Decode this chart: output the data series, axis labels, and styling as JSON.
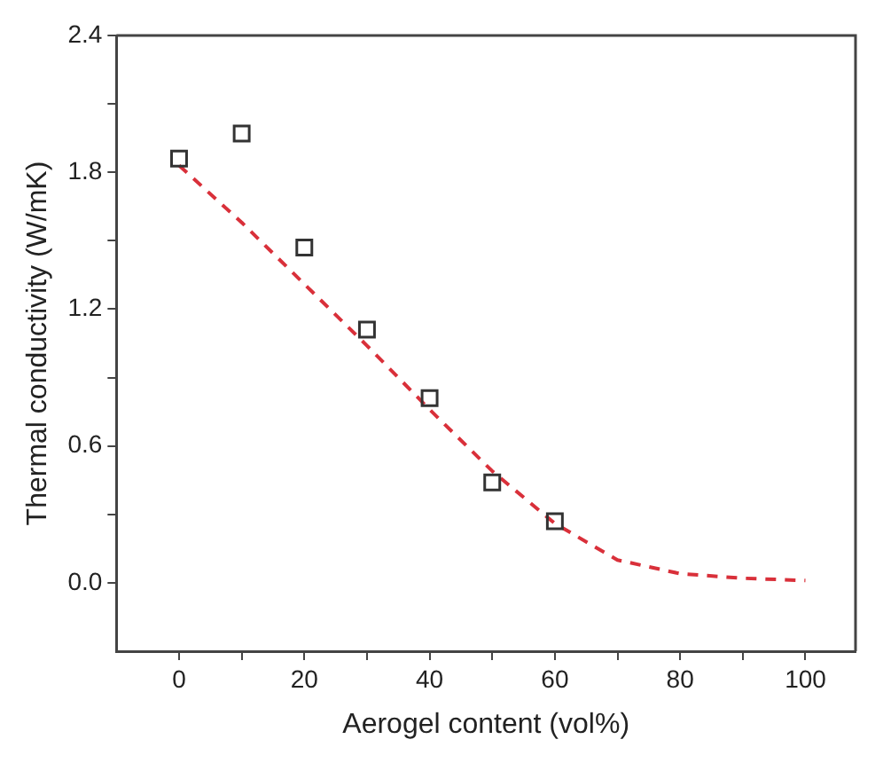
{
  "chart_data": {
    "type": "scatter",
    "xlabel": "Aerogel content (vol%)",
    "ylabel": "Thermal conductivity (W/mK)",
    "xlim": [
      -10,
      108
    ],
    "ylim": [
      -0.3,
      2.4
    ],
    "xticks": [
      0,
      {
        "value": 10,
        "label": null
      },
      20,
      {
        "value": 30,
        "label": null
      },
      40,
      {
        "value": 50,
        "label": null
      },
      60,
      {
        "value": 70,
        "label": null
      },
      80,
      {
        "value": 90,
        "label": null
      },
      100
    ],
    "yticks": [
      {
        "value": 0,
        "label": "0.0"
      },
      {
        "value": 0.3,
        "label": null
      },
      {
        "value": 0.6,
        "label": "0.6"
      },
      {
        "value": 0.9,
        "label": null
      },
      {
        "value": 1.2,
        "label": "1.2"
      },
      {
        "value": 1.5,
        "label": null
      },
      {
        "value": 1.8,
        "label": "1.8"
      },
      {
        "value": 2.1,
        "label": null
      },
      {
        "value": 2.4,
        "label": "2.4"
      }
    ],
    "grid": false,
    "legend": false,
    "series": [
      {
        "color": "#333333",
        "marker": "square",
        "x": [
          0,
          10,
          20,
          30,
          40,
          50,
          60
        ],
        "values": [
          1.86,
          1.97,
          1.47,
          1.11,
          0.81,
          0.44,
          0.27
        ]
      },
      {
        "type": "line",
        "color": "#d9303a",
        "marker": "none",
        "line_style": "dashed",
        "x": [
          0,
          10,
          20,
          30,
          40,
          50,
          60,
          70,
          80,
          90,
          100
        ],
        "values": [
          1.83,
          1.58,
          1.31,
          1.04,
          0.76,
          0.49,
          0.26,
          0.1,
          0.04,
          0.02,
          0.01
        ]
      }
    ]
  }
}
